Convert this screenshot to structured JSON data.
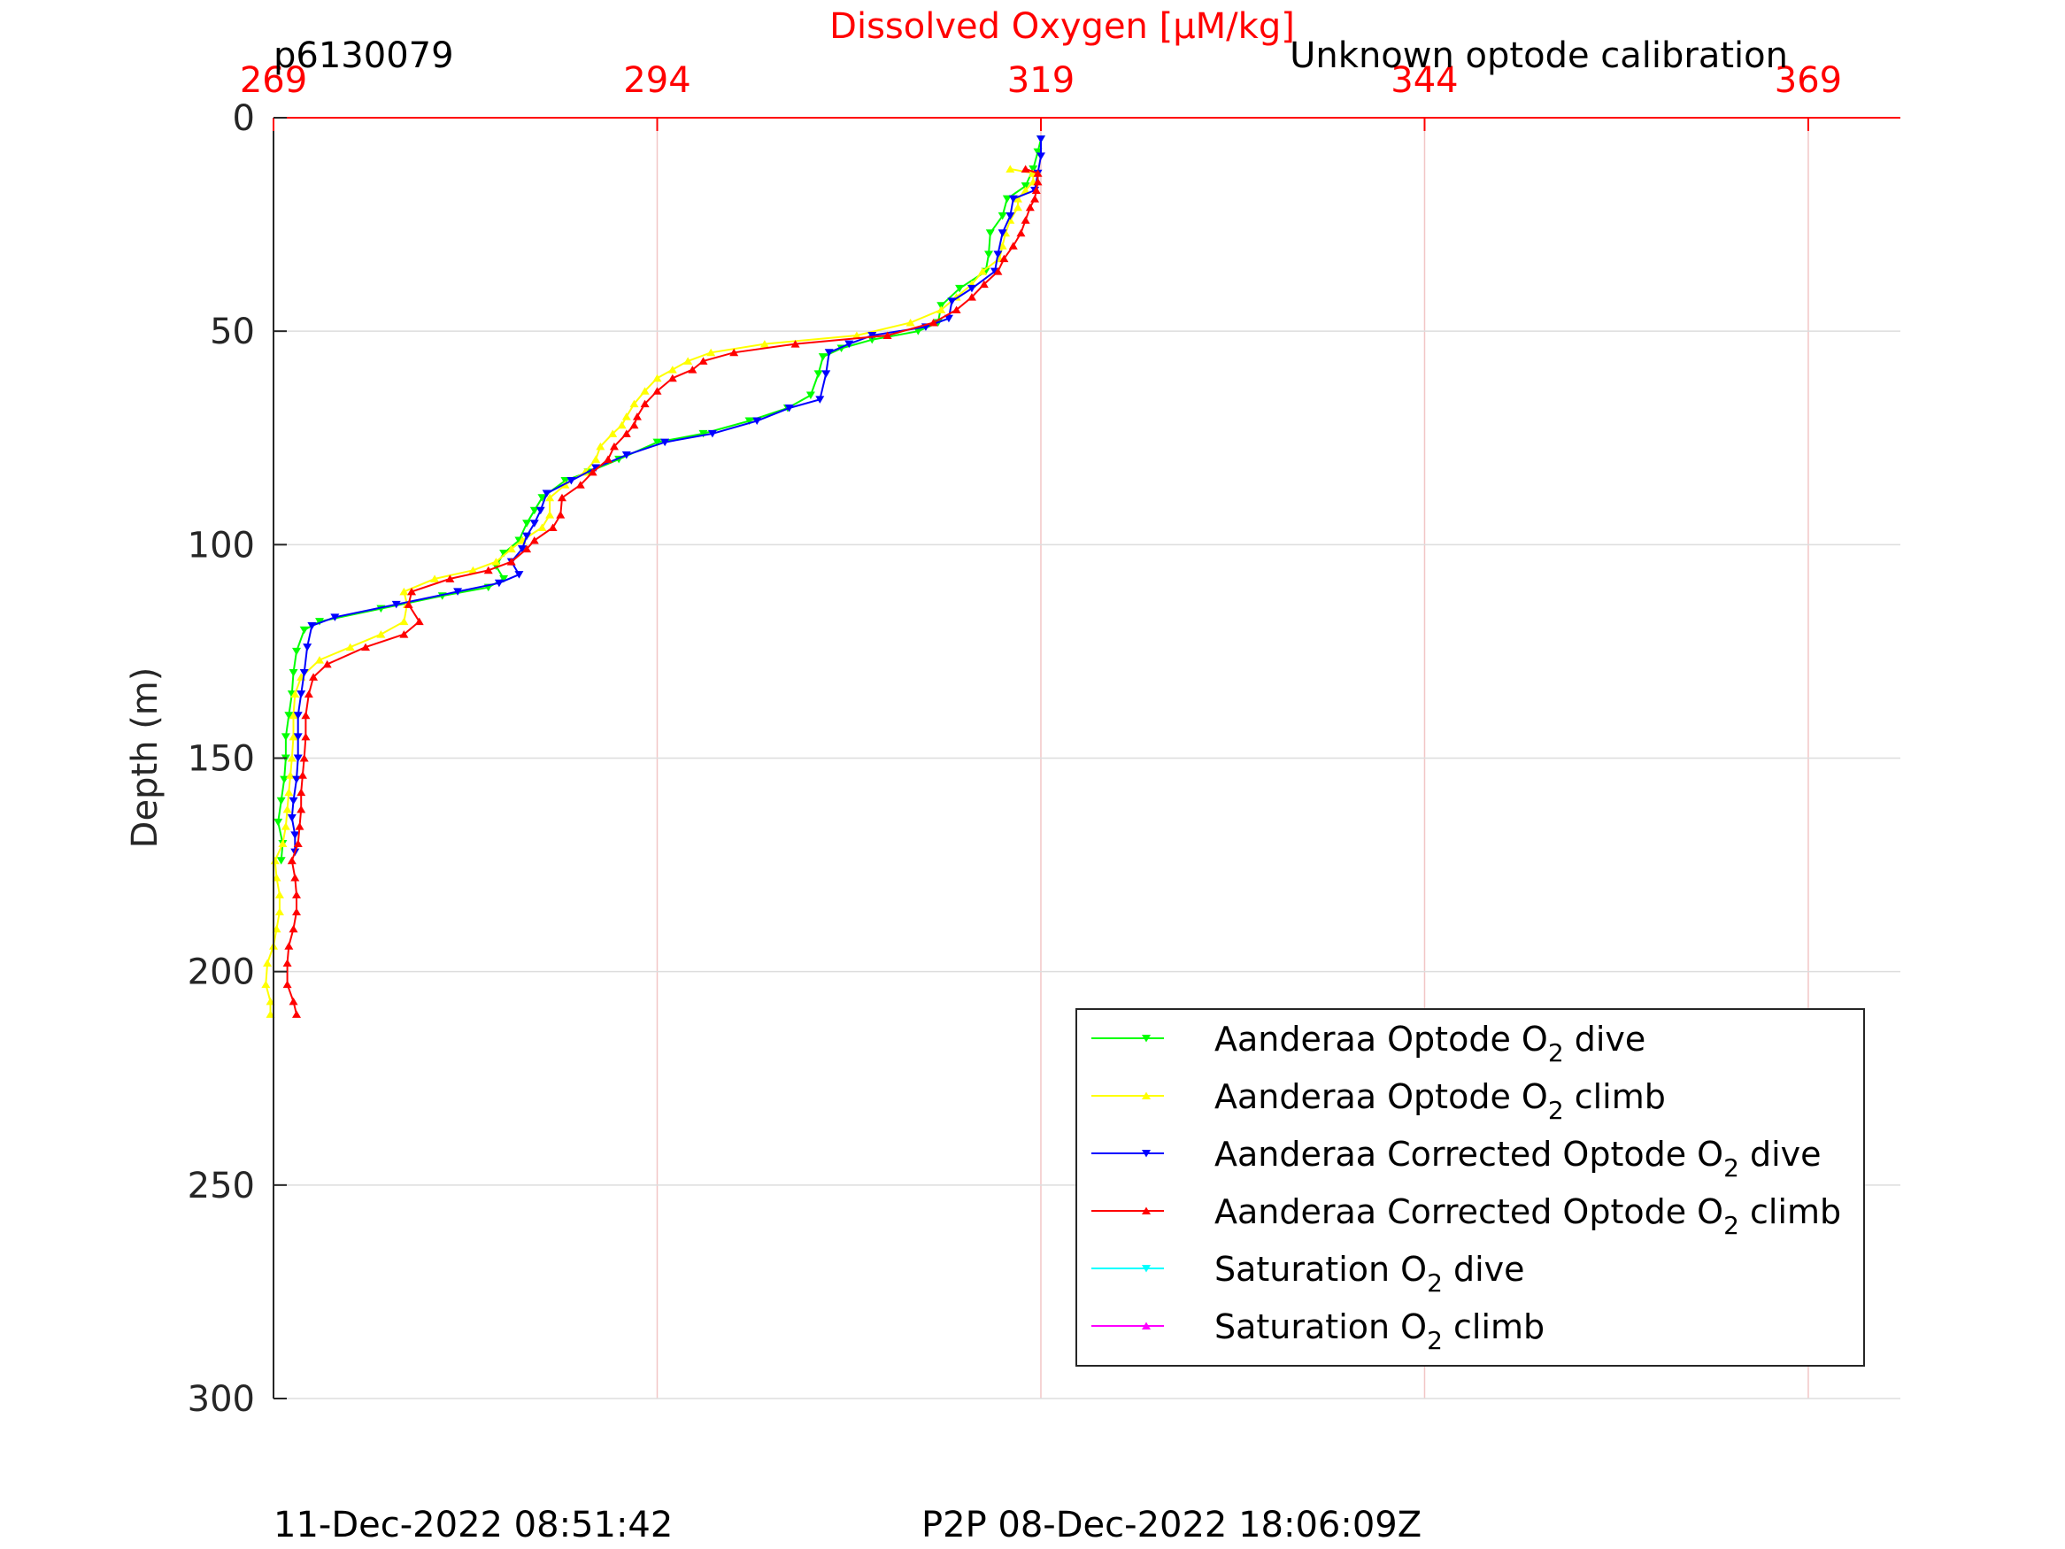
{
  "header": {
    "left_label": "p6130079",
    "right_label": "Unknown optode calibration"
  },
  "footer": {
    "left_timestamp": "11-Dec-2022 08:51:42",
    "right_timestamp": "P2P 08-Dec-2022 18:06:09Z"
  },
  "colors": {
    "optode_dive": "#00ff00",
    "optode_climb": "#ffff00",
    "corrected_dive": "#0000ff",
    "corrected_climb": "#ff0000",
    "saturation_dive": "#00ffff",
    "saturation_climb": "#ff00ff",
    "top_axis": "#ff0000",
    "grid_x": "#f2c6c6",
    "grid_y": "#dddddd"
  },
  "chart_data": {
    "type": "line",
    "title": "Dissolved Oxygen [μM/kg]",
    "xlabel": "Dissolved Oxygen [μM/kg]",
    "ylabel": "Depth (m)",
    "x_axis_position": "top",
    "y_reversed": true,
    "xlim": [
      269,
      375
    ],
    "ylim": [
      0,
      300
    ],
    "xticks": [
      269,
      294,
      319,
      344,
      369
    ],
    "yticks": [
      0,
      50,
      100,
      150,
      200,
      250,
      300
    ],
    "grid": true,
    "legend_position": "lower-right",
    "legend": [
      {
        "prefix": "Aanderaa Optode O",
        "sub": "2",
        "suffix": " dive",
        "series": "optode_dive"
      },
      {
        "prefix": "Aanderaa Optode O",
        "sub": "2",
        "suffix": " climb",
        "series": "optode_climb"
      },
      {
        "prefix": "Aanderaa Corrected Optode O",
        "sub": "2",
        "suffix": " dive",
        "series": "corrected_dive"
      },
      {
        "prefix": "Aanderaa Corrected Optode O",
        "sub": "2",
        "suffix": " climb",
        "series": "corrected_climb"
      },
      {
        "prefix": "Saturation O",
        "sub": "2",
        "suffix": " dive",
        "series": "saturation_dive"
      },
      {
        "prefix": "Saturation O",
        "sub": "2",
        "suffix": " climb",
        "series": "saturation_climb"
      }
    ],
    "series": [
      {
        "key": "optode_dive",
        "marker": "down",
        "points": [
          [
            319,
            5
          ],
          [
            318.8,
            8
          ],
          [
            318.5,
            12
          ],
          [
            318,
            16
          ],
          [
            316.8,
            19
          ],
          [
            316.5,
            23
          ],
          [
            315.7,
            27
          ],
          [
            315.6,
            32
          ],
          [
            315.4,
            36
          ],
          [
            313.7,
            40
          ],
          [
            312.5,
            44
          ],
          [
            312.3,
            48
          ],
          [
            311,
            50
          ],
          [
            308,
            52
          ],
          [
            306,
            54
          ],
          [
            304.8,
            56
          ],
          [
            304.5,
            60
          ],
          [
            304,
            65
          ],
          [
            302.5,
            68
          ],
          [
            300,
            71
          ],
          [
            297,
            74
          ],
          [
            294,
            76
          ],
          [
            291.5,
            80
          ],
          [
            289.5,
            83
          ],
          [
            288,
            85
          ],
          [
            286.5,
            89
          ],
          [
            286,
            92
          ],
          [
            285.5,
            95
          ],
          [
            285,
            99
          ],
          [
            284,
            102
          ],
          [
            283.5,
            105
          ],
          [
            284,
            108
          ],
          [
            283,
            110
          ],
          [
            280,
            112
          ],
          [
            276,
            115
          ],
          [
            272,
            118
          ],
          [
            271,
            120
          ],
          [
            270.5,
            125
          ],
          [
            270.3,
            130
          ],
          [
            270.2,
            135
          ],
          [
            270,
            140
          ],
          [
            269.8,
            145
          ],
          [
            269.8,
            150
          ],
          [
            269.7,
            155
          ],
          [
            269.5,
            160
          ],
          [
            269.3,
            165
          ],
          [
            269.6,
            170
          ],
          [
            269.5,
            174
          ]
        ]
      },
      {
        "key": "optode_climb",
        "marker": "up",
        "points": [
          [
            268.8,
            210
          ],
          [
            268.8,
            207
          ],
          [
            268.5,
            203
          ],
          [
            268.6,
            198
          ],
          [
            269,
            194
          ],
          [
            269.2,
            190
          ],
          [
            269.4,
            186
          ],
          [
            269.4,
            182
          ],
          [
            269.2,
            178
          ],
          [
            269.1,
            174
          ],
          [
            269.6,
            170
          ],
          [
            269.8,
            166
          ],
          [
            269.9,
            162
          ],
          [
            270,
            158
          ],
          [
            270.1,
            154
          ],
          [
            270.2,
            150
          ],
          [
            270.3,
            145
          ],
          [
            270.3,
            140
          ],
          [
            270.4,
            135
          ],
          [
            270.8,
            131
          ],
          [
            272,
            127
          ],
          [
            274,
            124
          ],
          [
            276,
            121
          ],
          [
            277.5,
            118
          ],
          [
            277.7,
            114
          ],
          [
            277.5,
            111
          ],
          [
            279.5,
            108
          ],
          [
            282,
            106
          ],
          [
            283.5,
            104
          ],
          [
            284.5,
            101
          ],
          [
            285.2,
            99
          ],
          [
            286.5,
            96
          ],
          [
            287,
            93
          ],
          [
            287,
            89
          ],
          [
            288,
            86
          ],
          [
            289.3,
            83
          ],
          [
            290,
            80
          ],
          [
            290.3,
            77
          ],
          [
            291.1,
            74
          ],
          [
            291.7,
            72
          ],
          [
            292,
            70
          ],
          [
            292.5,
            67
          ],
          [
            293.2,
            64
          ],
          [
            294,
            61
          ],
          [
            295,
            59
          ],
          [
            296,
            57
          ],
          [
            297.5,
            55
          ],
          [
            301,
            53
          ],
          [
            307,
            51
          ],
          [
            310.5,
            48
          ],
          [
            312.5,
            45
          ],
          [
            313.5,
            42
          ],
          [
            314.5,
            39
          ],
          [
            315.2,
            36
          ],
          [
            316.3,
            33
          ],
          [
            316.5,
            30
          ],
          [
            316.7,
            27
          ],
          [
            317,
            24
          ],
          [
            317.5,
            21
          ],
          [
            317.5,
            19
          ],
          [
            318,
            17
          ],
          [
            318.5,
            15
          ],
          [
            318.5,
            13
          ],
          [
            317,
            12
          ]
        ]
      },
      {
        "key": "corrected_dive",
        "marker": "down",
        "points": [
          [
            319,
            5
          ],
          [
            319,
            9
          ],
          [
            318.8,
            13
          ],
          [
            318.6,
            17
          ],
          [
            317.2,
            19
          ],
          [
            317,
            23
          ],
          [
            316.5,
            27
          ],
          [
            316.2,
            32
          ],
          [
            316,
            36
          ],
          [
            314.5,
            40
          ],
          [
            313.2,
            43
          ],
          [
            313,
            47
          ],
          [
            311.5,
            49
          ],
          [
            308,
            51
          ],
          [
            306.5,
            53
          ],
          [
            305.2,
            55
          ],
          [
            305,
            60
          ],
          [
            304.6,
            66
          ],
          [
            302.6,
            68
          ],
          [
            300.5,
            71
          ],
          [
            297.6,
            74
          ],
          [
            294.5,
            76
          ],
          [
            292,
            79
          ],
          [
            290,
            82
          ],
          [
            288.4,
            85
          ],
          [
            286.8,
            88
          ],
          [
            286.4,
            92
          ],
          [
            286,
            95
          ],
          [
            285.5,
            98
          ],
          [
            285.2,
            101
          ],
          [
            284.5,
            104
          ],
          [
            285,
            107
          ],
          [
            283.7,
            109
          ],
          [
            281,
            111
          ],
          [
            277,
            114
          ],
          [
            273,
            117
          ],
          [
            271.5,
            119
          ],
          [
            271.2,
            124
          ],
          [
            271,
            130
          ],
          [
            270.8,
            135
          ],
          [
            270.6,
            140
          ],
          [
            270.6,
            145
          ],
          [
            270.6,
            150
          ],
          [
            270.5,
            155
          ],
          [
            270.3,
            160
          ],
          [
            270.2,
            164
          ],
          [
            270.4,
            168
          ],
          [
            270.4,
            172
          ]
        ]
      },
      {
        "key": "corrected_climb",
        "marker": "up",
        "points": [
          [
            270.5,
            210
          ],
          [
            270.3,
            207
          ],
          [
            269.9,
            203
          ],
          [
            269.9,
            198
          ],
          [
            270,
            194
          ],
          [
            270.3,
            190
          ],
          [
            270.5,
            186
          ],
          [
            270.5,
            182
          ],
          [
            270.4,
            178
          ],
          [
            270.2,
            174
          ],
          [
            270.6,
            170
          ],
          [
            270.7,
            166
          ],
          [
            270.8,
            162
          ],
          [
            270.8,
            158
          ],
          [
            270.9,
            154
          ],
          [
            271,
            150
          ],
          [
            271.1,
            145
          ],
          [
            271.1,
            140
          ],
          [
            271.3,
            135
          ],
          [
            271.6,
            131
          ],
          [
            272.5,
            128
          ],
          [
            275,
            124
          ],
          [
            277.5,
            121
          ],
          [
            278.5,
            118
          ],
          [
            277.8,
            114
          ],
          [
            278,
            111
          ],
          [
            280.5,
            108
          ],
          [
            283,
            106
          ],
          [
            284.5,
            104
          ],
          [
            285.5,
            101
          ],
          [
            286,
            99
          ],
          [
            287.2,
            96
          ],
          [
            287.7,
            93
          ],
          [
            287.8,
            89
          ],
          [
            289,
            86
          ],
          [
            289.8,
            83
          ],
          [
            290.8,
            80
          ],
          [
            291.2,
            77
          ],
          [
            292,
            74
          ],
          [
            292.5,
            72
          ],
          [
            292.7,
            70
          ],
          [
            293.2,
            67
          ],
          [
            294,
            64
          ],
          [
            295,
            61
          ],
          [
            296.3,
            59
          ],
          [
            297,
            57
          ],
          [
            299,
            55
          ],
          [
            303,
            53
          ],
          [
            309,
            51
          ],
          [
            312,
            48
          ],
          [
            313.5,
            45
          ],
          [
            314.5,
            42
          ],
          [
            315.3,
            39
          ],
          [
            316.2,
            36
          ],
          [
            316.6,
            33
          ],
          [
            317.2,
            30
          ],
          [
            317.7,
            27
          ],
          [
            318,
            24
          ],
          [
            318.3,
            21
          ],
          [
            318.6,
            19
          ],
          [
            318.7,
            17
          ],
          [
            318.8,
            15
          ],
          [
            318.8,
            13
          ],
          [
            318,
            12
          ]
        ]
      },
      {
        "key": "saturation_dive",
        "marker": "down",
        "points": []
      },
      {
        "key": "saturation_climb",
        "marker": "up",
        "points": []
      }
    ]
  }
}
